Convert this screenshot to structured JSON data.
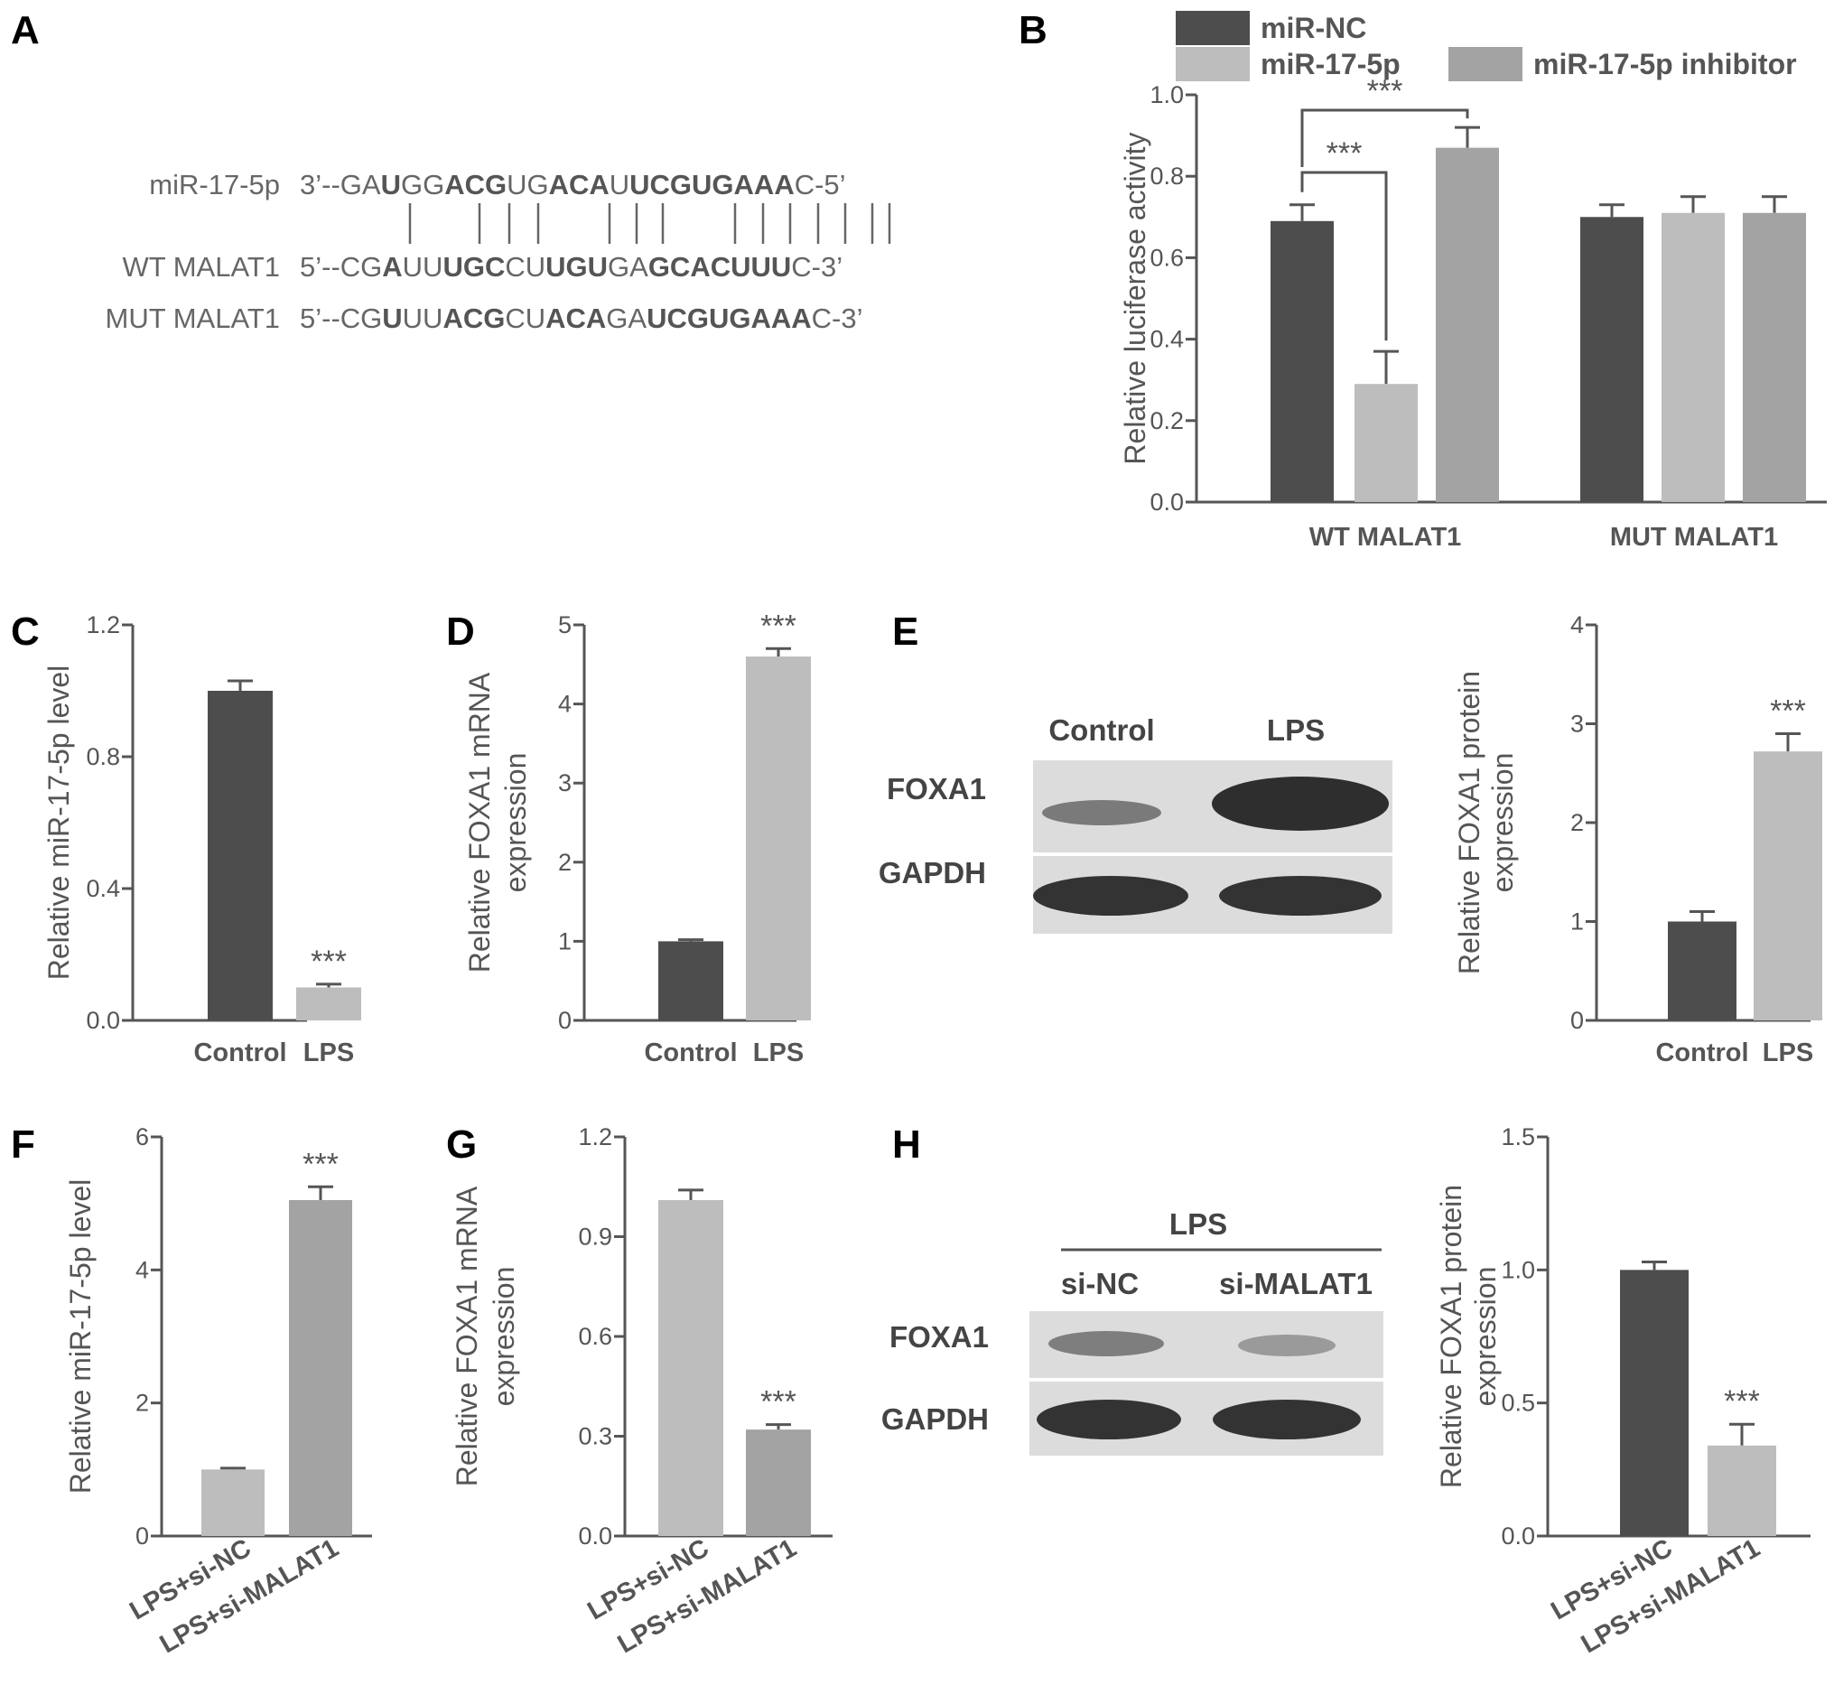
{
  "panels": {
    "A": "A",
    "B": "B",
    "C": "C",
    "D": "D",
    "E": "E",
    "F": "F",
    "G": "G",
    "H": "H"
  },
  "panel_a": {
    "rows": [
      {
        "label": "miR-17-5p",
        "segments": [
          {
            "t": "3’--GA",
            "b": false
          },
          {
            "t": "U",
            "b": true
          },
          {
            "t": "GG",
            "b": false
          },
          {
            "t": "ACG",
            "b": true
          },
          {
            "t": "UG",
            "b": false
          },
          {
            "t": "ACA",
            "b": true
          },
          {
            "t": "U",
            "b": false
          },
          {
            "t": "UCGUGAAA",
            "b": true
          },
          {
            "t": "C-5’",
            "b": false
          }
        ]
      },
      {
        "label": "WT MALAT1",
        "segments": [
          {
            "t": "5’--CG",
            "b": false
          },
          {
            "t": "A",
            "b": true
          },
          {
            "t": "UU",
            "b": false
          },
          {
            "t": "UGC",
            "b": true
          },
          {
            "t": "CU",
            "b": false
          },
          {
            "t": "UGU",
            "b": true
          },
          {
            "t": "GA",
            "b": false
          },
          {
            "t": "GCACUUU",
            "b": true
          },
          {
            "t": "C-3’",
            "b": false
          }
        ]
      },
      {
        "label": "MUT MALAT1",
        "segments": [
          {
            "t": "5’--CG",
            "b": false
          },
          {
            "t": "U",
            "b": true
          },
          {
            "t": "UU",
            "b": false
          },
          {
            "t": "ACG",
            "b": true
          },
          {
            "t": "CU",
            "b": false
          },
          {
            "t": "ACA",
            "b": true
          },
          {
            "t": "GA",
            "b": false
          },
          {
            "t": "UCGUGAAA",
            "b": true
          },
          {
            "t": "C-3’",
            "b": false
          }
        ]
      }
    ]
  },
  "colors": {
    "dark": "#4d4d4d",
    "light": "#bdbdbd",
    "mid": "#a3a3a3",
    "axis": "#555555"
  },
  "blots": {
    "E": {
      "lanes": [
        "Control",
        "LPS"
      ],
      "rows": [
        "FOXA1",
        "GAPDH"
      ]
    },
    "H": {
      "group": "LPS",
      "lanes": [
        "si-NC",
        "si-MALAT1"
      ],
      "rows": [
        "FOXA1",
        "GAPDH"
      ]
    }
  },
  "chart_data": [
    {
      "panel": "B",
      "type": "bar",
      "ylabel": "Relative luciferase activity",
      "ylim": [
        0,
        1.0
      ],
      "yticks": [
        "0.0",
        "0.2",
        "0.4",
        "0.6",
        "0.8",
        "1.0"
      ],
      "categories": [
        "WT MALAT1",
        "MUT MALAT1"
      ],
      "legend": {
        "placement": "top"
      },
      "series": [
        {
          "name": "miR-NC",
          "color": "#4d4d4d",
          "values": [
            0.69,
            0.7
          ],
          "errors": [
            0.04,
            0.03
          ]
        },
        {
          "name": "miR-17-5p",
          "color": "#bdbdbd",
          "values": [
            0.29,
            0.71
          ],
          "errors": [
            0.08,
            0.04
          ]
        },
        {
          "name": "miR-17-5p inhibitor",
          "color": "#a3a3a3",
          "values": [
            0.87,
            0.71
          ],
          "errors": [
            0.05,
            0.04
          ]
        }
      ],
      "annotations": [
        "***",
        "***"
      ]
    },
    {
      "panel": "C",
      "type": "bar",
      "ylabel": "Relative miR-17-5p level",
      "ylim": [
        0,
        1.2
      ],
      "yticks": [
        "0.0",
        "0.4",
        "0.8",
        "1.2"
      ],
      "categories": [
        "Control",
        "LPS"
      ],
      "values": [
        1.0,
        0.1
      ],
      "errors": [
        0.03,
        0.01
      ],
      "bar_colors": [
        "#4d4d4d",
        "#bdbdbd"
      ],
      "annotations": [
        "",
        "***"
      ]
    },
    {
      "panel": "D",
      "type": "bar",
      "ylabel": "Relative FOXA1 mRNA expression",
      "ylim": [
        0,
        5
      ],
      "yticks": [
        "0",
        "1",
        "2",
        "3",
        "4",
        "5"
      ],
      "categories": [
        "Control",
        "LPS"
      ],
      "values": [
        1.0,
        4.6
      ],
      "errors": [
        0.02,
        0.1
      ],
      "bar_colors": [
        "#4d4d4d",
        "#bdbdbd"
      ],
      "annotations": [
        "",
        "***"
      ]
    },
    {
      "panel": "E",
      "type": "bar",
      "ylabel": "Relative FOXA1 protein expression",
      "ylim": [
        0,
        4
      ],
      "yticks": [
        "0",
        "1",
        "2",
        "3",
        "4"
      ],
      "categories": [
        "Control",
        "LPS"
      ],
      "values": [
        1.0,
        2.72
      ],
      "errors": [
        0.1,
        0.18
      ],
      "bar_colors": [
        "#4d4d4d",
        "#bdbdbd"
      ],
      "annotations": [
        "",
        "***"
      ]
    },
    {
      "panel": "F",
      "type": "bar",
      "ylabel": "Relative miR-17-5p level",
      "ylim": [
        0,
        6
      ],
      "yticks": [
        "0",
        "2",
        "4",
        "6"
      ],
      "categories": [
        "LPS+si-NC",
        "LPS+si-MALAT1"
      ],
      "values": [
        1.0,
        5.05
      ],
      "errors": [
        0.02,
        0.2
      ],
      "bar_colors": [
        "#bdbdbd",
        "#a3a3a3"
      ],
      "annotations": [
        "",
        "***"
      ]
    },
    {
      "panel": "G",
      "type": "bar",
      "ylabel": "Relative FOXA1 mRNA expression",
      "ylim": [
        0,
        1.2
      ],
      "yticks": [
        "0.0",
        "0.3",
        "0.6",
        "0.9",
        "1.2"
      ],
      "categories": [
        "LPS+si-NC",
        "LPS+si-MALAT1"
      ],
      "values": [
        1.01,
        0.32
      ],
      "errors": [
        0.03,
        0.015
      ],
      "bar_colors": [
        "#bdbdbd",
        "#a3a3a3"
      ],
      "annotations": [
        "",
        "***"
      ]
    },
    {
      "panel": "H",
      "type": "bar",
      "ylabel": "Relative FOXA1 protein expression",
      "ylim": [
        0,
        1.5
      ],
      "yticks": [
        "0.0",
        "0.5",
        "1.0",
        "1.5"
      ],
      "categories": [
        "LPS+si-NC",
        "LPS+si-MALAT1"
      ],
      "values": [
        1.0,
        0.34
      ],
      "errors": [
        0.03,
        0.08
      ],
      "bar_colors": [
        "#4d4d4d",
        "#bdbdbd"
      ],
      "annotations": [
        "",
        "***"
      ]
    }
  ]
}
